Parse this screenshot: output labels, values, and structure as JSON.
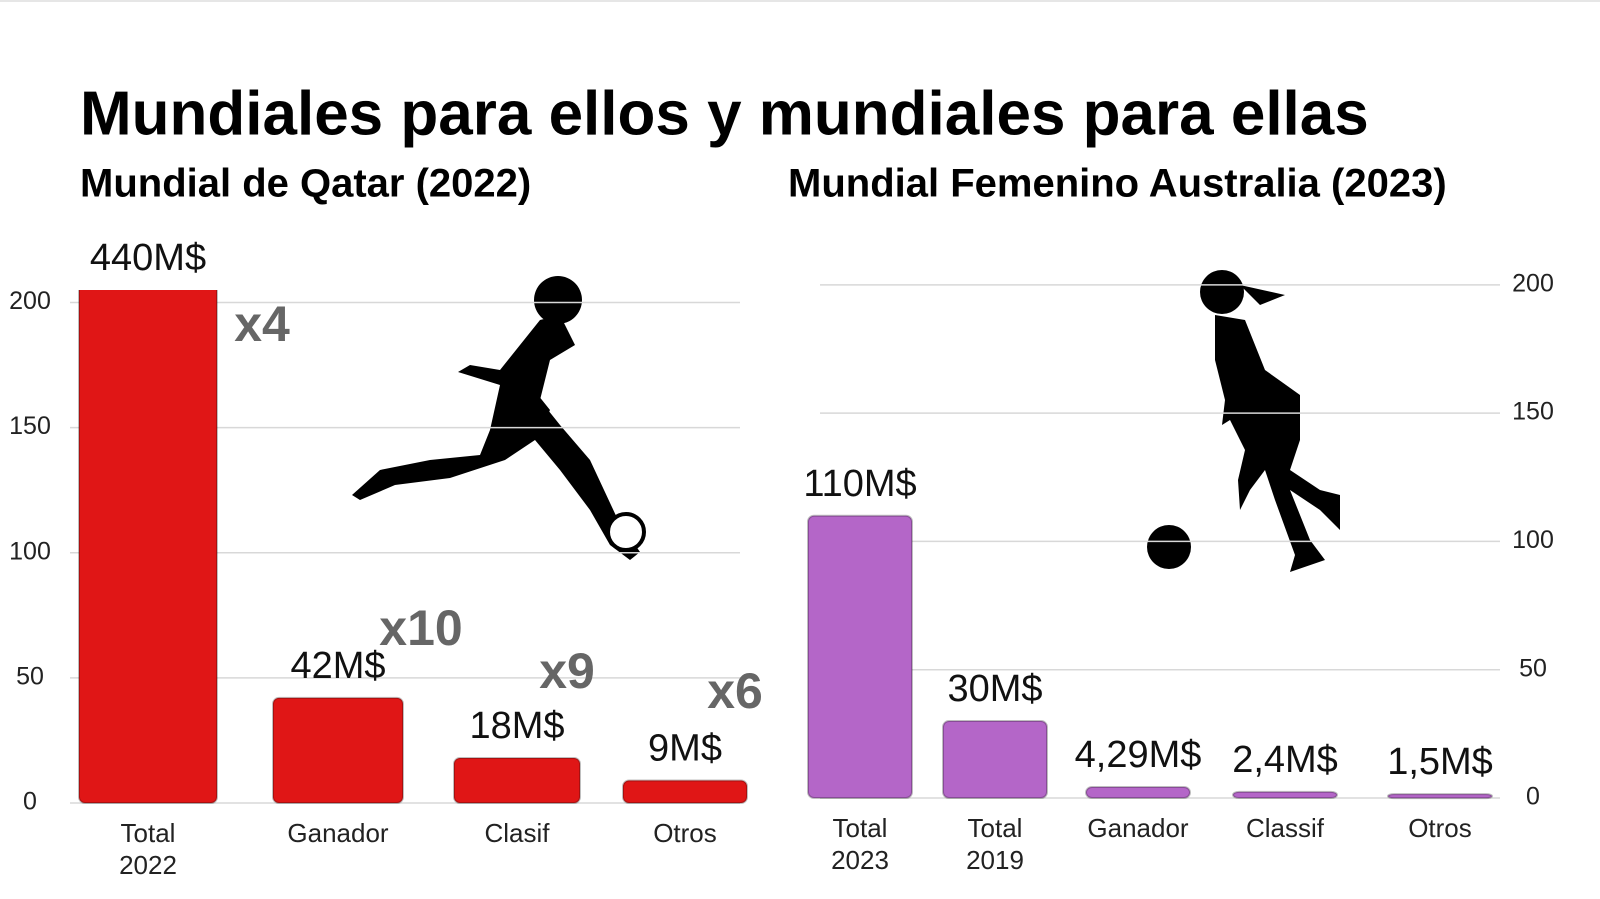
{
  "title": "Mundiales para ellos y mundiales para ellas",
  "chart_data": [
    {
      "type": "bar",
      "title": "Mundial de Qatar (2022)",
      "categories": [
        "Total 2022",
        "Ganador",
        "Clasif",
        "Otros"
      ],
      "values": [
        440,
        42,
        18,
        9
      ],
      "value_labels": [
        "440M$",
        "42M$",
        "18M$",
        "9M$"
      ],
      "annotations": [
        "x4",
        "x10",
        "x9",
        "x6"
      ],
      "color": "#e01616",
      "ylim": [
        0,
        205
      ],
      "yticks": [
        0,
        50,
        100,
        150,
        200
      ],
      "grid": true,
      "yaxis_position": "left"
    },
    {
      "type": "bar",
      "title": "Mundial Femenino Australia (2023)",
      "categories": [
        "Total 2023",
        "Total 2019",
        "Ganador",
        "Classif",
        "Otros"
      ],
      "values": [
        110,
        30,
        4.29,
        2.4,
        1.5
      ],
      "value_labels": [
        "110M$",
        "30M$",
        "4,29M$",
        "2,4M$",
        "1,5M$"
      ],
      "color": "#b466c8",
      "ylim": [
        0,
        205
      ],
      "yticks": [
        0,
        50,
        100,
        150,
        200
      ],
      "grid": true,
      "yaxis_position": "right"
    }
  ]
}
